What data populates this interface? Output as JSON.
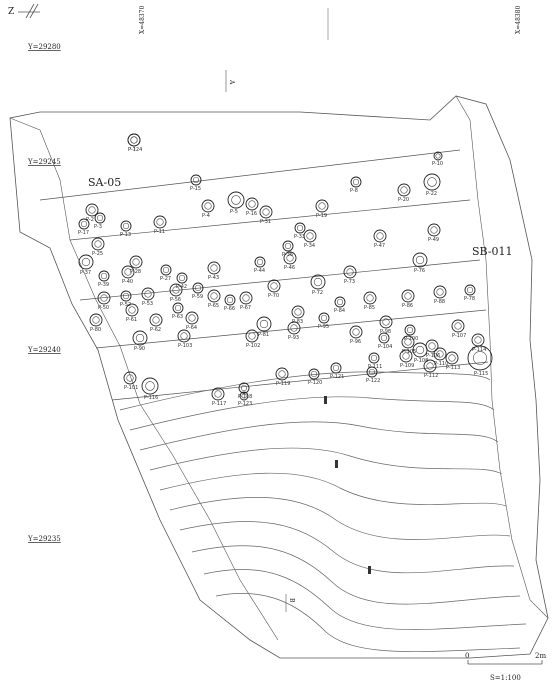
{
  "north_symbol": "Z",
  "coordinates": {
    "x_top": [
      "X=48370",
      "X=48380"
    ],
    "y_left": [
      "Y=29280",
      "Y=29245",
      "Y=29240",
      "Y=29235"
    ]
  },
  "section_marks": {
    "top": "A",
    "bottom": "B"
  },
  "features": [
    "SA-05",
    "SB-011"
  ],
  "pits": [
    {
      "label": "P-1"
    },
    {
      "label": "P-2"
    },
    {
      "label": "P-3"
    },
    {
      "label": "P-4"
    },
    {
      "label": "P-5"
    },
    {
      "label": "P-8"
    },
    {
      "label": "P-10"
    },
    {
      "label": "P-11"
    },
    {
      "label": "P-13"
    },
    {
      "label": "P-15"
    },
    {
      "label": "P-16"
    },
    {
      "label": "P-17"
    },
    {
      "label": "P-19"
    },
    {
      "label": "P-20"
    },
    {
      "label": "P-22"
    },
    {
      "label": "P-25"
    },
    {
      "label": "P-27"
    },
    {
      "label": "P-28"
    },
    {
      "label": "P-31"
    },
    {
      "label": "P-33"
    },
    {
      "label": "P-34"
    },
    {
      "label": "P-36"
    },
    {
      "label": "P-37"
    },
    {
      "label": "P-39"
    },
    {
      "label": "P-40"
    },
    {
      "label": "P-42"
    },
    {
      "label": "P-43"
    },
    {
      "label": "P-44"
    },
    {
      "label": "P-46"
    },
    {
      "label": "P-47"
    },
    {
      "label": "P-49"
    },
    {
      "label": "P-50"
    },
    {
      "label": "P-52"
    },
    {
      "label": "P-53"
    },
    {
      "label": "P-56"
    },
    {
      "label": "P-59"
    },
    {
      "label": "P-61"
    },
    {
      "label": "P-62"
    },
    {
      "label": "P-63"
    },
    {
      "label": "P-64"
    },
    {
      "label": "P-65"
    },
    {
      "label": "P-66"
    },
    {
      "label": "P-67"
    },
    {
      "label": "P-70"
    },
    {
      "label": "P-72"
    },
    {
      "label": "P-73"
    },
    {
      "label": "P-76"
    },
    {
      "label": "P-78"
    },
    {
      "label": "P-80"
    },
    {
      "label": "P-81"
    },
    {
      "label": "P-83"
    },
    {
      "label": "P-84"
    },
    {
      "label": "P-85"
    },
    {
      "label": "P-86"
    },
    {
      "label": "P-88"
    },
    {
      "label": "P-90"
    },
    {
      "label": "P-93"
    },
    {
      "label": "P-95"
    },
    {
      "label": "P-96"
    },
    {
      "label": "P-98"
    },
    {
      "label": "P-100"
    },
    {
      "label": "P-101"
    },
    {
      "label": "P-102"
    },
    {
      "label": "P-103"
    },
    {
      "label": "P-104"
    },
    {
      "label": "P-105"
    },
    {
      "label": "P-106"
    },
    {
      "label": "P-107"
    },
    {
      "label": "P-108"
    },
    {
      "label": "P-109"
    },
    {
      "label": "P-110"
    },
    {
      "label": "P-111"
    },
    {
      "label": "P-112"
    },
    {
      "label": "P-113"
    },
    {
      "label": "P-114"
    },
    {
      "label": "P-115"
    },
    {
      "label": "P-116"
    },
    {
      "label": "P-117"
    },
    {
      "label": "P-118"
    },
    {
      "label": "P-119"
    },
    {
      "label": "P-120"
    },
    {
      "label": "P-121"
    },
    {
      "label": "P-122"
    },
    {
      "label": "P-123"
    },
    {
      "label": "P-124"
    }
  ],
  "scale_bar": {
    "start": "0",
    "end": "2m",
    "ratio": "S=1:100"
  }
}
